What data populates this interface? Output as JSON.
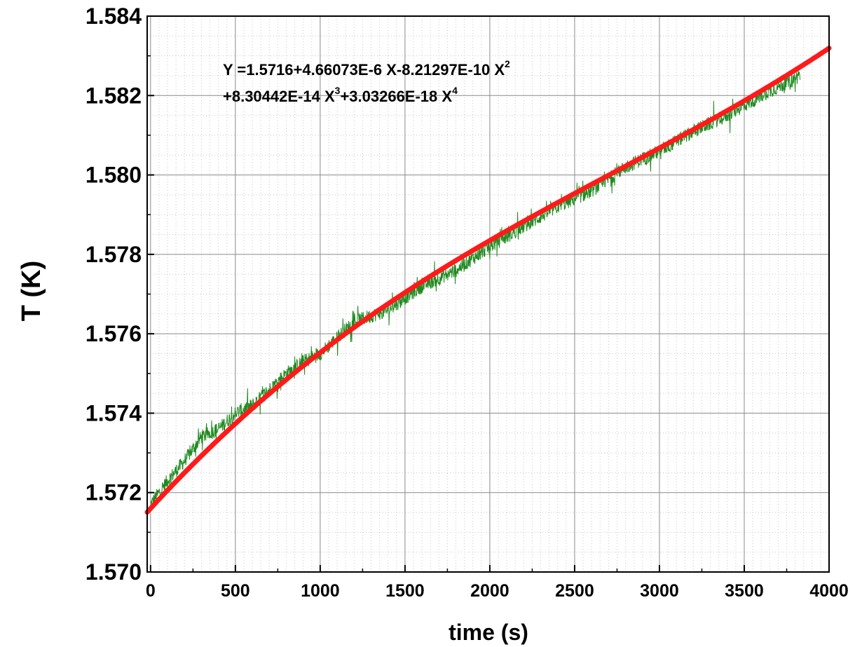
{
  "chart_data": {
    "type": "line",
    "xlabel": "time (s)",
    "ylabel": "T (K)",
    "xlim": [
      -20,
      4000
    ],
    "ylim": [
      1.57,
      1.584
    ],
    "x_ticks": [
      0,
      500,
      1000,
      1500,
      2000,
      2500,
      3000,
      3500,
      4000
    ],
    "y_ticks": [
      1.57,
      1.572,
      1.574,
      1.576,
      1.578,
      1.58,
      1.582,
      1.584
    ],
    "x_tick_labels": [
      "0",
      "500",
      "1000",
      "1500",
      "2000",
      "2500",
      "3000",
      "3500",
      "4000"
    ],
    "y_tick_labels": [
      "1.570",
      "1.572",
      "1.574",
      "1.576",
      "1.578",
      "1.580",
      "1.582",
      "1.584"
    ],
    "grid": true,
    "minor_grid": true,
    "colors": {
      "data": "#1f8a1f",
      "fit": "#ff1a1a",
      "grid": "#8a8a8a",
      "minor_grid": "#c8c8c8"
    },
    "annotation": {
      "line1_main": "Y =1.5716+4.66073E-6 X-8.21297E-10 X",
      "line1_sup": "2",
      "line2_a": "+8.30442E-14 X",
      "line2_sup_a": "3",
      "line2_b": "+3.03266E-18 X",
      "line2_sup_b": "4"
    },
    "series": [
      {
        "kind": "measured",
        "x_range": [
          0,
          3830
        ],
        "noise_amplitude": 0.0003,
        "x": [
          0,
          50,
          100,
          200,
          300,
          400,
          500,
          600,
          700,
          800,
          900,
          1000,
          1200,
          1400,
          1600,
          1800,
          2000,
          2200,
          2400,
          2600,
          2800,
          3000,
          3200,
          3400,
          3600,
          3830
        ],
        "y": [
          1.5717,
          1.572,
          1.5723,
          1.5728,
          1.5734,
          1.5736,
          1.574,
          1.5742,
          1.5746,
          1.575,
          1.5753,
          1.5755,
          1.5763,
          1.5766,
          1.5772,
          1.5776,
          1.5782,
          1.5787,
          1.5792,
          1.5796,
          1.5802,
          1.5806,
          1.5811,
          1.5815,
          1.582,
          1.5825
        ]
      },
      {
        "kind": "fit",
        "coefficients": [
          1.5716,
          4.66073e-06,
          -8.21297e-10,
          8.30442e-14,
          3.03266e-18
        ],
        "x_range": [
          -20,
          4000
        ]
      }
    ]
  }
}
